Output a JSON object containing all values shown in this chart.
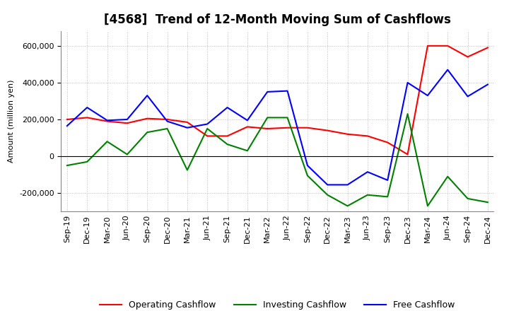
{
  "title": "[4568]  Trend of 12-Month Moving Sum of Cashflows",
  "ylabel": "Amount (million yen)",
  "xlabels": [
    "Sep-19",
    "Dec-19",
    "Mar-20",
    "Jun-20",
    "Sep-20",
    "Dec-20",
    "Mar-21",
    "Jun-21",
    "Sep-21",
    "Dec-21",
    "Mar-22",
    "Jun-22",
    "Sep-22",
    "Dec-22",
    "Mar-23",
    "Jun-23",
    "Sep-23",
    "Dec-23",
    "Mar-24",
    "Jun-24",
    "Sep-24",
    "Dec-24"
  ],
  "operating": [
    200000,
    210000,
    190000,
    180000,
    205000,
    200000,
    185000,
    110000,
    110000,
    160000,
    150000,
    155000,
    155000,
    140000,
    120000,
    110000,
    75000,
    10000,
    600000,
    600000,
    540000,
    590000
  ],
  "investing": [
    -50000,
    -30000,
    80000,
    10000,
    130000,
    150000,
    -75000,
    150000,
    65000,
    30000,
    210000,
    210000,
    -105000,
    -210000,
    -270000,
    -210000,
    -220000,
    230000,
    -270000,
    -110000,
    -230000,
    -250000
  ],
  "free": [
    165000,
    265000,
    195000,
    200000,
    330000,
    190000,
    155000,
    175000,
    265000,
    195000,
    350000,
    355000,
    -50000,
    -155000,
    -155000,
    -85000,
    -130000,
    400000,
    330000,
    470000,
    325000,
    390000
  ],
  "operating_color": "#FF0000",
  "investing_color": "#008000",
  "free_color": "#0000FF",
  "ylim": [
    -300000,
    680000
  ],
  "yticks": [
    -200000,
    0,
    200000,
    400000,
    600000
  ],
  "bg_color": "#FFFFFF",
  "grid_color": "#BBBBBB",
  "title_fontsize": 12,
  "axis_fontsize": 8,
  "legend_fontsize": 9,
  "linewidth": 1.5
}
